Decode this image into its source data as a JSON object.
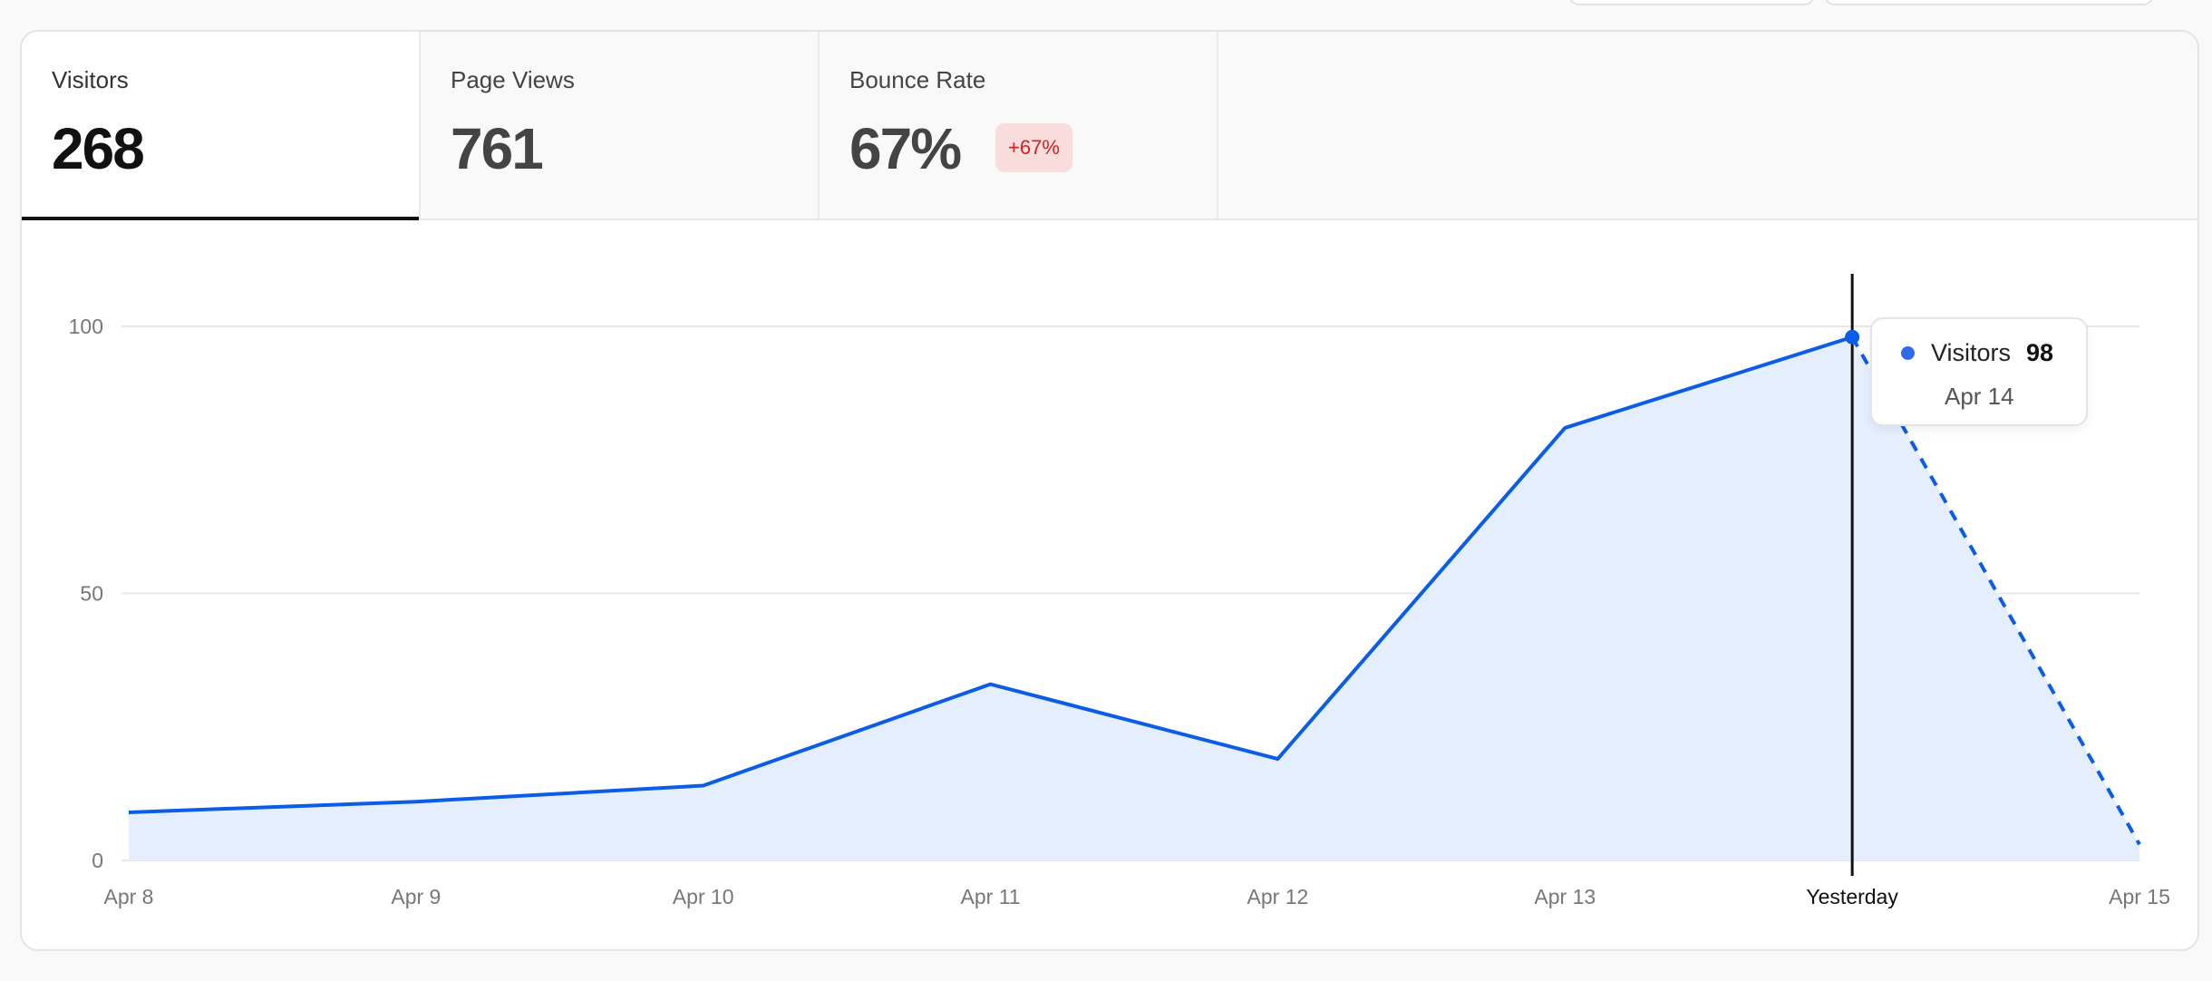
{
  "tabs": [
    {
      "label": "Visitors",
      "value": "268",
      "active": true
    },
    {
      "label": "Page Views",
      "value": "761",
      "active": false
    },
    {
      "label": "Bounce Rate",
      "value": "67%",
      "badge": "+67%",
      "active": false
    }
  ],
  "colors": {
    "line": "#0b5ce6",
    "fill": "#e4eefc",
    "badge_bg": "#f9dcdc",
    "badge_text": "#d42020"
  },
  "tooltip": {
    "series": "Visitors",
    "value": "98",
    "date": "Apr 14"
  },
  "chart_data": {
    "type": "area",
    "x": [
      "Apr 8",
      "Apr 9",
      "Apr 10",
      "Apr 11",
      "Apr 12",
      "Apr 13",
      "Yesterday",
      "Apr 15"
    ],
    "series": [
      {
        "name": "Visitors",
        "values": [
          9,
          11,
          14,
          33,
          19,
          81,
          98,
          3
        ]
      }
    ],
    "y_ticks": [
      "0",
      "50",
      "100"
    ],
    "ylim": [
      0,
      100
    ],
    "grid": true,
    "highlighted_index": 6,
    "dashed_last_segment": true
  }
}
